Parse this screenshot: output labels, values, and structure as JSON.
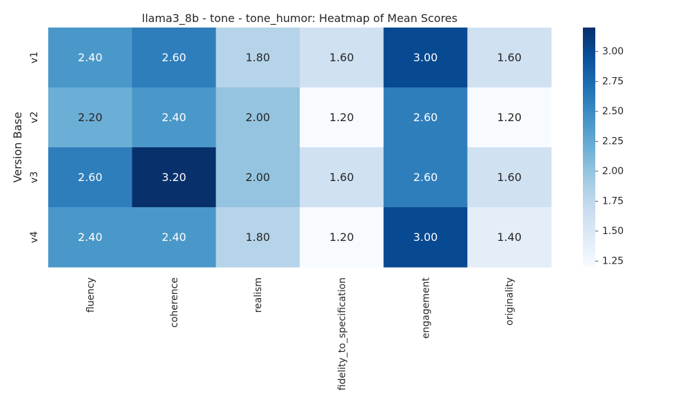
{
  "chart_data": {
    "type": "heatmap",
    "title": "llama3_8b - tone - tone_humor: Heatmap of Mean Scores",
    "xlabel": "",
    "ylabel": "Version Base",
    "columns": [
      "fluency",
      "coherence",
      "realism",
      "fidelity_to_specification",
      "engagement",
      "originality"
    ],
    "rows": [
      "v1",
      "v2",
      "v3",
      "v4"
    ],
    "values": [
      [
        2.4,
        2.6,
        1.8,
        1.6,
        3.0,
        1.6
      ],
      [
        2.2,
        2.4,
        2.0,
        1.2,
        2.6,
        1.2
      ],
      [
        2.6,
        3.2,
        2.0,
        1.6,
        2.6,
        1.6
      ],
      [
        2.4,
        2.4,
        1.8,
        1.2,
        3.0,
        1.4
      ]
    ],
    "value_labels": [
      [
        "2.40",
        "2.60",
        "1.80",
        "1.60",
        "3.00",
        "1.60"
      ],
      [
        "2.20",
        "2.40",
        "2.00",
        "1.20",
        "2.60",
        "1.20"
      ],
      [
        "2.60",
        "3.20",
        "2.00",
        "1.60",
        "2.60",
        "1.60"
      ],
      [
        "2.40",
        "2.40",
        "1.80",
        "1.20",
        "3.00",
        "1.40"
      ]
    ],
    "colormap": "Blues",
    "vmin": 1.2,
    "vmax": 3.2,
    "colorbar_ticks": [
      "1.25",
      "1.50",
      "1.75",
      "2.00",
      "2.25",
      "2.50",
      "2.75",
      "3.00"
    ],
    "colorbar_tick_values": [
      1.25,
      1.5,
      1.75,
      2.0,
      2.25,
      2.5,
      2.75,
      3.0
    ],
    "grid": false,
    "legend": "colorbar-right"
  }
}
